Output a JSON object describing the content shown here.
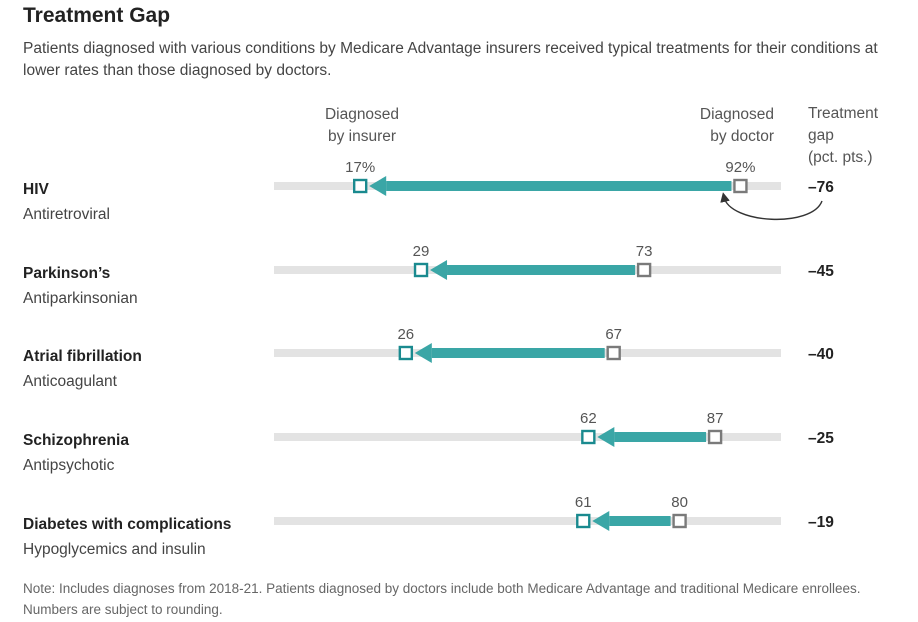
{
  "title": "Treatment Gap",
  "subtitle": "Patients diagnosed with various conditions by Medicare Advantage insurers received typical treatments for their conditions at lower rates than those diagnosed by doctors.",
  "note": "Note: Includes diagnoses from 2018-21. Patients diagnosed by doctors include both Medicare Advantage and traditional Medicare enrollees. Numbers are subject to rounding.",
  "headers": {
    "insurer": [
      "Diagnosed",
      "by insurer"
    ],
    "doctor": [
      "Diagnosed",
      "by doctor"
    ],
    "gap": [
      "Treatment",
      "gap",
      "(pct. pts.)"
    ]
  },
  "colors": {
    "insurer": "#1a8a8f",
    "doctor": "#7a7a7a",
    "arrow": "#3aa6a6",
    "track": "#e3e3e3"
  },
  "chart_data": {
    "type": "dumbbell-arrow",
    "xlim": [
      0,
      100
    ],
    "rows": [
      {
        "condition": "HIV",
        "treatment": "Antiretroviral",
        "insurer": 17,
        "doctor": 92,
        "insurer_label": "17%",
        "doctor_label": "92%",
        "gap": -76,
        "gap_label": "–76"
      },
      {
        "condition": "Parkinson’s",
        "treatment": "Antiparkinsonian",
        "insurer": 29,
        "doctor": 73,
        "insurer_label": "29",
        "doctor_label": "73",
        "gap": -45,
        "gap_label": "–45"
      },
      {
        "condition": "Atrial fibrillation",
        "treatment": "Anticoagulant",
        "insurer": 26,
        "doctor": 67,
        "insurer_label": "26",
        "doctor_label": "67",
        "gap": -40,
        "gap_label": "–40"
      },
      {
        "condition": "Schizophrenia",
        "treatment": "Antipsychotic",
        "insurer": 62,
        "doctor": 87,
        "insurer_label": "62",
        "doctor_label": "87",
        "gap": -25,
        "gap_label": "–25"
      },
      {
        "condition": "Diabetes with complications",
        "treatment": "Hypoglycemics and insulin",
        "insurer": 61,
        "doctor": 80,
        "insurer_label": "61",
        "doctor_label": "80",
        "gap": -19,
        "gap_label": "–19"
      }
    ]
  }
}
